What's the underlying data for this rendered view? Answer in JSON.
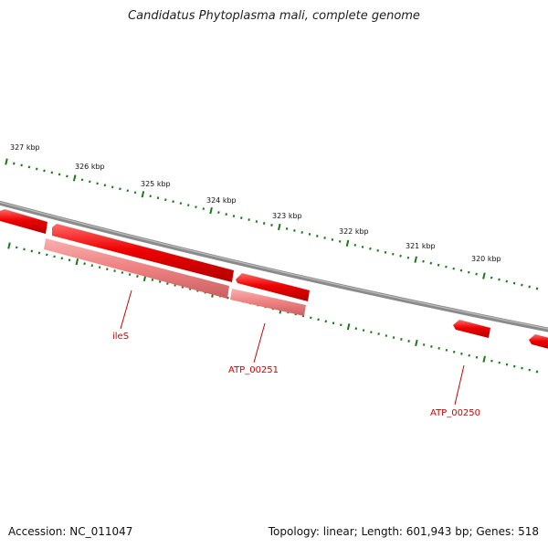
{
  "title": "Candidatus Phytoplasma mali, complete genome",
  "footer": {
    "accession": "Accession: NC_011047",
    "summary": "Topology: linear; Length: 601,943 bp; Genes: 518"
  },
  "colors": {
    "backbone": "#7a7a7a",
    "tick": "#1a7a1a",
    "gene": "#e80000",
    "gene_dark": "#b00000",
    "gene_light": "#ef8a8a",
    "label": "#d00000"
  },
  "kbp_labels": [
    "327 kbp",
    "326 kbp",
    "325 kbp",
    "324 kbp",
    "323 kbp",
    "322 kbp",
    "321 kbp",
    "320 kbp"
  ],
  "gene_labels": [
    "ileS",
    "ATP_00251",
    "ATP_00250"
  ]
}
